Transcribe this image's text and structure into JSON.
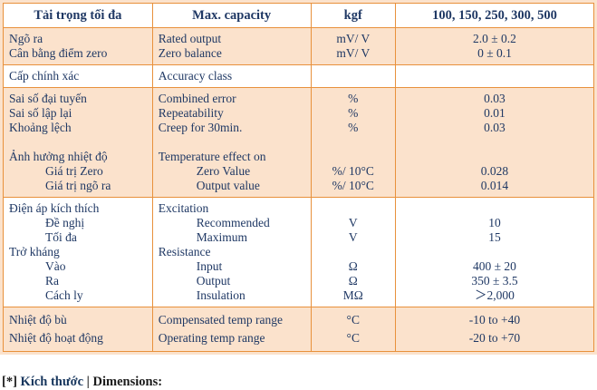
{
  "colors": {
    "border_orange": "#E8913C",
    "row_peach": "#FBE2CC",
    "row_white": "#FFFFFF",
    "text_navy": "#1F3864",
    "caption_dark": "#1A1A1A",
    "caption_blue": "#17365D"
  },
  "table": {
    "header": {
      "vi": "Tải trọng tối đa",
      "en": "Max. capacity",
      "unit": "kgf",
      "value": "100, 150, 250, 300, 500"
    },
    "groups": [
      {
        "bg": "peach",
        "rows": [
          {
            "vi": "Ngõ ra",
            "en": "Rated output",
            "unit": "mV/ V",
            "value": "2.0 ± 0.2"
          },
          {
            "vi": "Cân bằng điểm zero",
            "en": "Zero balance",
            "unit": "mV/ V",
            "value": "0 ± 0.1"
          }
        ]
      },
      {
        "bg": "white",
        "rows": [
          {
            "vi": "Cấp chính xác",
            "en": "Accuracy class",
            "unit": "",
            "value": ""
          }
        ]
      },
      {
        "bg": "peach",
        "rows": [
          {
            "vi": "Sai số đại tuyến",
            "en": "Combined error",
            "unit": "%",
            "value": "0.03"
          },
          {
            "vi": "Sai số lập lại",
            "en": "Repeatability",
            "unit": "%",
            "value": "0.01"
          },
          {
            "vi": "Khoảng lệch",
            "en": "Creep for 30min.",
            "unit": "%",
            "value": "0.03"
          },
          {
            "vi": "",
            "en": "",
            "unit": "",
            "value": ""
          },
          {
            "vi": "Ảnh hưởng nhiệt độ",
            "en": "Temperature effect on",
            "unit": "",
            "value": ""
          },
          {
            "vi": "Giá trị Zero",
            "en": "Zero Value",
            "unit": "%/ 10°C",
            "value": "0.028",
            "indent": true
          },
          {
            "vi": "Giá trị ngõ ra",
            "en": "Output value",
            "unit": "%/ 10°C",
            "value": "0.014",
            "indent": true
          }
        ]
      },
      {
        "bg": "white",
        "rows": [
          {
            "vi": "Điện áp kích thích",
            "en": "Excitation",
            "unit": "",
            "value": ""
          },
          {
            "vi": "Đề nghị",
            "en": "Recommended",
            "unit": "V",
            "value": "10",
            "indent": true
          },
          {
            "vi": "Tối đa",
            "en": "Maximum",
            "unit": "V",
            "value": "15",
            "indent": true
          },
          {
            "vi": "Trở kháng",
            "en": "Resistance",
            "unit": "",
            "value": ""
          },
          {
            "vi": "Vào",
            "en": "Input",
            "unit": "Ω",
            "value": "400 ± 20",
            "indent": true
          },
          {
            "vi": "Ra",
            "en": "Output",
            "unit": "Ω",
            "value": "350 ± 3.5",
            "indent": true
          },
          {
            "vi": "Cách ly",
            "en": "Insulation",
            "unit": "MΩ",
            "value": "＞2,000",
            "indent": true
          }
        ]
      },
      {
        "bg": "peach",
        "tall": true,
        "rows": [
          {
            "vi": "Nhiệt độ bù",
            "en": "Compensated temp range",
            "unit": "°C",
            "value": "-10 to +40"
          },
          {
            "vi": "Nhiệt độ hoạt động",
            "en": "Operating temp range",
            "unit": "°C",
            "value": "-20 to +70"
          }
        ]
      }
    ]
  },
  "caption": {
    "prefix": "[*]",
    "vi": "Kích thước",
    "divider": "|",
    "en": "Dimensions:"
  }
}
